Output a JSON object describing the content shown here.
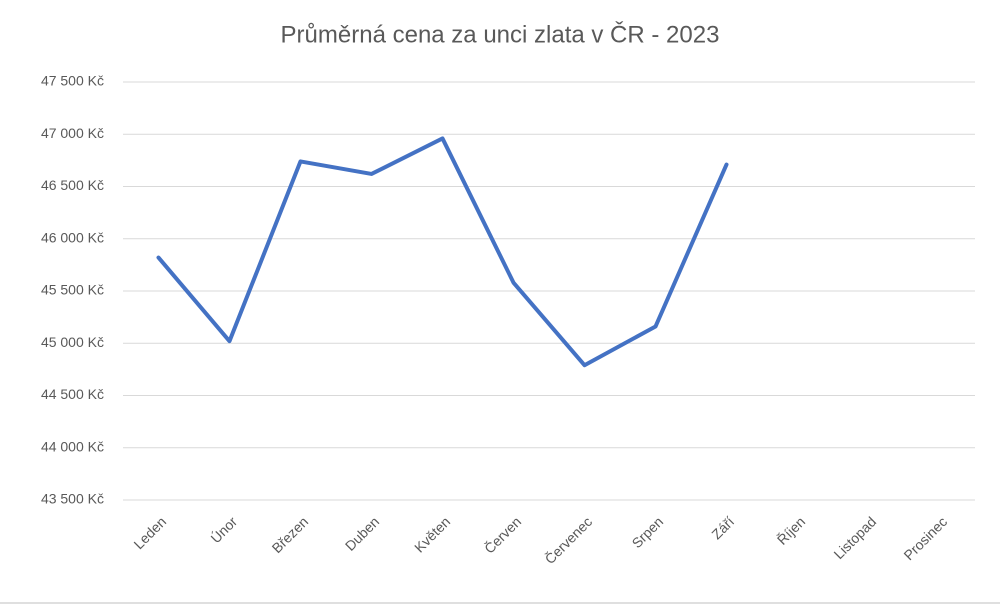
{
  "chart_data": {
    "type": "line",
    "title": "Průměrná cena za unci zlata v ČR - 2023",
    "categories": [
      "Leden",
      "Únor",
      "Březen",
      "Duben",
      "Květen",
      "Červen",
      "Červenec",
      "Srpen",
      "Září",
      "Říjen",
      "Listopad",
      "Prosinec"
    ],
    "series": [
      {
        "color": "#4472c4",
        "values": [
          45820,
          45020,
          46740,
          46620,
          46960,
          45580,
          44790,
          45160,
          46710,
          null,
          null,
          null
        ]
      }
    ],
    "ylim": [
      43500,
      47500
    ],
    "yticks": [
      {
        "value": 43500,
        "label": "43 500 Kč"
      },
      {
        "value": 44000,
        "label": "44 000 Kč"
      },
      {
        "value": 44500,
        "label": "44 500 Kč"
      },
      {
        "value": 45000,
        "label": "45 000 Kč"
      },
      {
        "value": 45500,
        "label": "45 500 Kč"
      },
      {
        "value": 46000,
        "label": "46 000 Kč"
      },
      {
        "value": 46500,
        "label": "46 500 Kč"
      },
      {
        "value": 47000,
        "label": "47 000 Kč"
      },
      {
        "value": 47500,
        "label": "47 500 Kč"
      }
    ],
    "grid": true
  }
}
